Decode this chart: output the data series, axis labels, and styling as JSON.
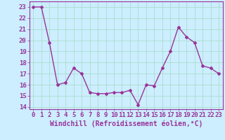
{
  "x": [
    0,
    1,
    2,
    3,
    4,
    5,
    6,
    7,
    8,
    9,
    10,
    11,
    12,
    13,
    14,
    15,
    16,
    17,
    18,
    19,
    20,
    21,
    22,
    23
  ],
  "y": [
    23.0,
    23.0,
    19.8,
    16.0,
    16.2,
    17.5,
    17.0,
    15.3,
    15.2,
    15.2,
    15.3,
    15.3,
    15.5,
    14.2,
    16.0,
    15.9,
    17.5,
    19.0,
    21.2,
    20.3,
    19.8,
    17.7,
    17.5,
    17.0
  ],
  "line_color": "#993399",
  "marker": "D",
  "marker_size": 2,
  "line_width": 1.0,
  "background_color": "#cceeff",
  "grid_color": "#aaddcc",
  "xlabel": "Windchill (Refroidissement éolien,°C)",
  "xlabel_fontsize": 7,
  "tick_fontsize": 6.5,
  "ylim": [
    13.8,
    23.5
  ],
  "xlim": [
    -0.5,
    23.5
  ],
  "yticks": [
    14,
    15,
    16,
    17,
    18,
    19,
    20,
    21,
    22,
    23
  ],
  "xticks": [
    0,
    1,
    2,
    3,
    4,
    5,
    6,
    7,
    8,
    9,
    10,
    11,
    12,
    13,
    14,
    15,
    16,
    17,
    18,
    19,
    20,
    21,
    22,
    23
  ]
}
